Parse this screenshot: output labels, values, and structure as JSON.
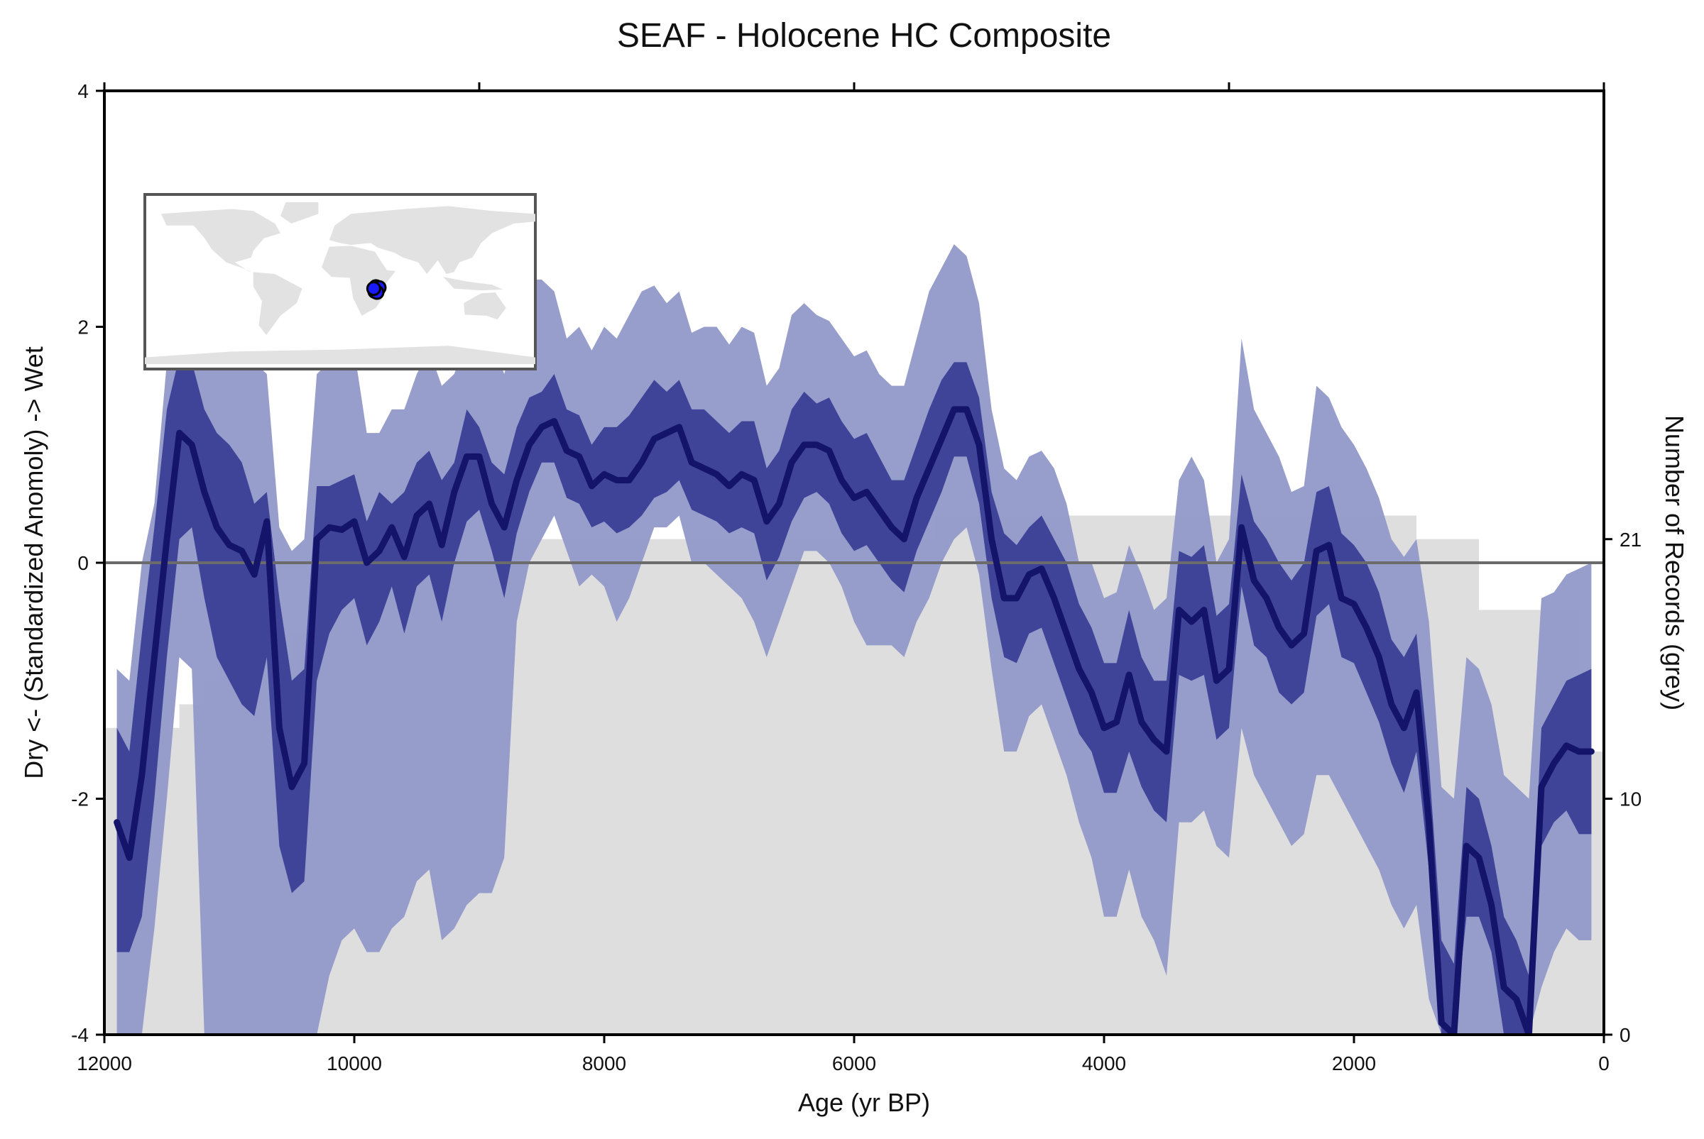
{
  "chart_data": {
    "type": "line",
    "title": "SEAF - Holocene HC Composite",
    "xlabel": "Age (yr BP)",
    "ylabel": "Dry <- (Standardized Anomoly) -> Wet",
    "y2label": "Number of Records (grey)",
    "xlim": [
      12000,
      0
    ],
    "ylim": [
      -4,
      4
    ],
    "y2lim": [
      0,
      40
    ],
    "x_ticks": [
      "12000",
      "10000",
      "8000",
      "6000",
      "4000",
      "2000",
      "0"
    ],
    "y_ticks": [
      "-4",
      "-2",
      "0",
      "2",
      "4"
    ],
    "y2_ticks": [
      "0",
      "10",
      "21"
    ],
    "zero_line": 0,
    "grid": false,
    "inset_map": {
      "present": true,
      "region": "southeast Africa",
      "marker_color": "#1a1aff"
    },
    "colors": {
      "median": "#14146a",
      "band_inner": "#3a3f96",
      "band_outer": "#9199c9",
      "records": "#dedede",
      "zero_line": "#6b6b6b",
      "land": "#e2e2e2"
    },
    "series": [
      {
        "name": "median",
        "x": [
          11900,
          11800,
          11700,
          11600,
          11500,
          11400,
          11300,
          11200,
          11100,
          11000,
          10900,
          10800,
          10700,
          10600,
          10500,
          10400,
          10300,
          10200,
          10100,
          10000,
          9900,
          9800,
          9700,
          9600,
          9500,
          9400,
          9300,
          9200,
          9100,
          9000,
          8900,
          8800,
          8700,
          8600,
          8500,
          8400,
          8300,
          8200,
          8100,
          8000,
          7900,
          7800,
          7700,
          7600,
          7500,
          7400,
          7300,
          7200,
          7100,
          7000,
          6900,
          6800,
          6700,
          6600,
          6500,
          6400,
          6300,
          6200,
          6100,
          6000,
          5900,
          5800,
          5700,
          5600,
          5500,
          5400,
          5300,
          5200,
          5100,
          5000,
          4900,
          4800,
          4700,
          4600,
          4500,
          4400,
          4300,
          4200,
          4100,
          4000,
          3900,
          3800,
          3700,
          3600,
          3500,
          3400,
          3300,
          3200,
          3100,
          3000,
          2900,
          2800,
          2700,
          2600,
          2500,
          2400,
          2300,
          2200,
          2100,
          2000,
          1900,
          1800,
          1700,
          1600,
          1500,
          1400,
          1300,
          1200,
          1100,
          1000,
          900,
          800,
          700,
          600,
          500,
          400,
          300,
          200,
          100
        ],
        "values": [
          -2.2,
          -2.5,
          -1.8,
          -0.8,
          0.2,
          1.1,
          1.0,
          0.6,
          0.3,
          0.15,
          0.1,
          -0.1,
          0.35,
          -1.4,
          -1.9,
          -1.7,
          0.2,
          0.3,
          0.28,
          0.35,
          0.0,
          0.1,
          0.3,
          0.05,
          0.4,
          0.5,
          0.15,
          0.6,
          0.9,
          0.9,
          0.5,
          0.3,
          0.7,
          1.0,
          1.15,
          1.2,
          0.95,
          0.9,
          0.65,
          0.75,
          0.7,
          0.7,
          0.85,
          1.05,
          1.1,
          1.15,
          0.85,
          0.8,
          0.75,
          0.65,
          0.75,
          0.7,
          0.35,
          0.5,
          0.85,
          1.0,
          1.0,
          0.95,
          0.7,
          0.55,
          0.6,
          0.45,
          0.3,
          0.2,
          0.55,
          0.8,
          1.05,
          1.3,
          1.3,
          1.0,
          0.2,
          -0.3,
          -0.3,
          -0.1,
          -0.05,
          -0.3,
          -0.6,
          -0.9,
          -1.1,
          -1.4,
          -1.35,
          -0.95,
          -1.35,
          -1.5,
          -1.6,
          -0.4,
          -0.5,
          -0.4,
          -1.0,
          -0.9,
          0.3,
          -0.15,
          -0.3,
          -0.55,
          -0.7,
          -0.6,
          0.1,
          0.15,
          -0.3,
          -0.35,
          -0.55,
          -0.8,
          -1.2,
          -1.4,
          -1.1,
          -2.2,
          -3.9,
          -4.2,
          -2.4,
          -2.5,
          -2.9,
          -3.6,
          -3.7,
          -4.0,
          -1.9,
          -1.7,
          -1.55,
          -1.6,
          -1.6
        ]
      },
      {
        "name": "inner_upper",
        "values": [
          -1.4,
          -1.6,
          -0.6,
          0.3,
          1.3,
          1.75,
          1.7,
          1.3,
          1.1,
          1.0,
          0.85,
          0.5,
          0.6,
          -0.3,
          -1.0,
          -0.9,
          0.65,
          0.65,
          0.7,
          0.75,
          0.35,
          0.6,
          0.5,
          0.6,
          0.85,
          0.95,
          0.7,
          0.85,
          1.3,
          1.15,
          0.85,
          0.75,
          1.15,
          1.4,
          1.45,
          1.6,
          1.3,
          1.25,
          1.0,
          1.15,
          1.15,
          1.25,
          1.4,
          1.55,
          1.45,
          1.55,
          1.3,
          1.3,
          1.2,
          1.1,
          1.2,
          1.2,
          0.8,
          0.95,
          1.3,
          1.45,
          1.35,
          1.4,
          1.2,
          1.05,
          1.1,
          0.9,
          0.7,
          0.7,
          1.0,
          1.3,
          1.55,
          1.7,
          1.7,
          1.4,
          0.6,
          0.25,
          0.15,
          0.3,
          0.4,
          0.2,
          0.0,
          -0.35,
          -0.55,
          -0.85,
          -0.85,
          -0.4,
          -0.8,
          -1.0,
          -1.0,
          0.1,
          0.05,
          0.15,
          -0.45,
          -0.35,
          0.75,
          0.35,
          0.2,
          0.0,
          -0.15,
          0.0,
          0.6,
          0.65,
          0.25,
          0.15,
          0.0,
          -0.25,
          -0.65,
          -0.8,
          -0.6,
          -1.7,
          -3.2,
          -3.4,
          -1.9,
          -2.0,
          -2.4,
          -3.0,
          -3.2,
          -3.5,
          -1.4,
          -1.2,
          -1.0,
          -0.95,
          -0.9
        ]
      },
      {
        "name": "inner_lower",
        "values": [
          -3.3,
          -3.3,
          -3.0,
          -2.0,
          -0.8,
          0.2,
          0.3,
          -0.3,
          -0.8,
          -1.0,
          -1.2,
          -1.3,
          -0.8,
          -2.4,
          -2.8,
          -2.7,
          -1.0,
          -0.6,
          -0.4,
          -0.3,
          -0.7,
          -0.5,
          -0.2,
          -0.6,
          -0.2,
          -0.1,
          -0.5,
          0.0,
          0.35,
          0.45,
          0.1,
          -0.3,
          0.25,
          0.6,
          0.85,
          0.85,
          0.55,
          0.5,
          0.3,
          0.35,
          0.25,
          0.3,
          0.4,
          0.55,
          0.6,
          0.7,
          0.45,
          0.4,
          0.35,
          0.25,
          0.3,
          0.25,
          -0.15,
          0.05,
          0.35,
          0.55,
          0.6,
          0.5,
          0.25,
          0.1,
          0.15,
          0.0,
          -0.15,
          -0.25,
          0.1,
          0.35,
          0.6,
          0.9,
          0.9,
          0.5,
          -0.3,
          -0.8,
          -0.85,
          -0.6,
          -0.55,
          -0.85,
          -1.15,
          -1.45,
          -1.6,
          -1.95,
          -1.95,
          -1.6,
          -1.9,
          -2.1,
          -2.2,
          -0.95,
          -1.0,
          -0.95,
          -1.5,
          -1.4,
          -0.2,
          -0.7,
          -0.8,
          -1.1,
          -1.2,
          -1.1,
          -0.45,
          -0.35,
          -0.8,
          -0.85,
          -1.1,
          -1.35,
          -1.7,
          -1.95,
          -1.6,
          -2.6,
          -4.2,
          -4.3,
          -3.0,
          -3.0,
          -3.3,
          -4.0,
          -4.1,
          -4.3,
          -2.4,
          -2.2,
          -2.1,
          -2.3,
          -2.3
        ]
      },
      {
        "name": "outer_upper",
        "values": [
          -0.9,
          -1.0,
          0.0,
          0.5,
          1.7,
          2.3,
          2.4,
          2.2,
          2.0,
          1.9,
          1.8,
          1.7,
          1.6,
          0.3,
          0.1,
          0.2,
          1.6,
          1.7,
          2.0,
          1.8,
          1.1,
          1.1,
          1.3,
          1.3,
          1.6,
          1.8,
          1.5,
          1.6,
          1.9,
          2.0,
          1.9,
          1.6,
          2.0,
          2.4,
          2.4,
          2.3,
          1.9,
          2.0,
          1.8,
          2.0,
          1.9,
          2.1,
          2.3,
          2.35,
          2.2,
          2.3,
          1.95,
          2.0,
          2.0,
          1.85,
          2.0,
          1.95,
          1.5,
          1.65,
          2.1,
          2.2,
          2.1,
          2.05,
          1.9,
          1.75,
          1.8,
          1.6,
          1.5,
          1.5,
          1.9,
          2.3,
          2.5,
          2.7,
          2.6,
          2.2,
          1.3,
          0.8,
          0.7,
          0.9,
          0.95,
          0.8,
          0.5,
          0.0,
          0.0,
          -0.3,
          -0.25,
          0.15,
          -0.1,
          -0.4,
          -0.3,
          0.7,
          0.9,
          0.7,
          0.0,
          0.2,
          1.9,
          1.3,
          1.1,
          0.9,
          0.6,
          0.65,
          1.5,
          1.4,
          1.15,
          1.0,
          0.8,
          0.55,
          0.2,
          0.05,
          0.2,
          -0.5,
          -1.9,
          -2.0,
          -0.8,
          -0.9,
          -1.2,
          -1.8,
          -1.9,
          -2.0,
          -0.3,
          -0.25,
          -0.1,
          -0.05,
          0.0
        ]
      },
      {
        "name": "outer_lower",
        "values": [
          -4.3,
          -4.3,
          -4.0,
          -3.1,
          -2.0,
          -0.8,
          -0.9,
          -4.3,
          -4.3,
          -4.3,
          -4.3,
          -4.3,
          -4.3,
          -4.3,
          -4.3,
          -4.3,
          -4.3,
          -3.5,
          -3.2,
          -3.1,
          -3.3,
          -3.3,
          -3.1,
          -3.0,
          -2.7,
          -2.6,
          -3.2,
          -3.1,
          -2.9,
          -2.8,
          -2.8,
          -2.5,
          -0.5,
          0.0,
          0.2,
          0.4,
          0.1,
          -0.2,
          -0.1,
          -0.2,
          -0.5,
          -0.3,
          0.0,
          0.3,
          0.3,
          0.4,
          0.0,
          0.0,
          -0.1,
          -0.2,
          -0.3,
          -0.5,
          -0.8,
          -0.5,
          -0.2,
          0.1,
          0.1,
          0.0,
          -0.2,
          -0.5,
          -0.7,
          -0.7,
          -0.7,
          -0.8,
          -0.5,
          -0.3,
          0.0,
          0.2,
          0.3,
          -0.1,
          -0.9,
          -1.6,
          -1.6,
          -1.3,
          -1.2,
          -1.5,
          -1.8,
          -2.2,
          -2.5,
          -3.0,
          -3.0,
          -2.6,
          -3.0,
          -3.2,
          -3.5,
          -2.2,
          -2.2,
          -2.1,
          -2.4,
          -2.5,
          -1.4,
          -1.8,
          -2.0,
          -2.2,
          -2.4,
          -2.3,
          -1.8,
          -1.8,
          -2.0,
          -2.2,
          -2.4,
          -2.6,
          -2.9,
          -3.1,
          -2.9,
          -3.7,
          -4.3,
          -4.3,
          -4.3,
          -4.3,
          -4.3,
          -4.3,
          -4.3,
          -4.3,
          -3.6,
          -3.3,
          -3.1,
          -3.2,
          -3.2
        ]
      }
    ],
    "records": {
      "x": [
        12000,
        11600,
        11400,
        11200,
        11000,
        10500,
        10200,
        9800,
        9500,
        8800,
        5400,
        5350,
        5000,
        1500,
        1000,
        200,
        0
      ],
      "counts": [
        13,
        13,
        14,
        15,
        16,
        17,
        18,
        19,
        20,
        21,
        21,
        22,
        22,
        21,
        18,
        12,
        12
      ]
    }
  }
}
